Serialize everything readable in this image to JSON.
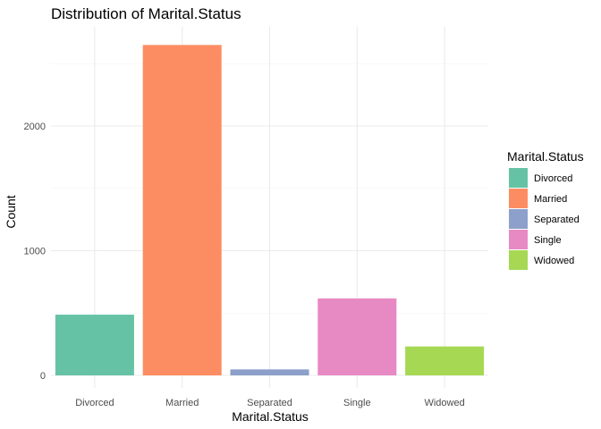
{
  "chart_data": {
    "type": "bar",
    "title": "Distribution of Marital.Status",
    "xlabel": "Marital.Status",
    "ylabel": "Count",
    "categories": [
      "Divorced",
      "Married",
      "Separated",
      "Single",
      "Widowed"
    ],
    "values": [
      487,
      2650,
      48,
      617,
      232
    ],
    "ylim": [
      0,
      2700
    ],
    "yticks": [
      0,
      1000,
      2000
    ],
    "ytick_labels": [
      "0",
      "1000",
      "2000"
    ],
    "grid": true,
    "legend": {
      "title": "Marital.Status",
      "placement": "right",
      "entries": [
        "Divorced",
        "Married",
        "Separated",
        "Single",
        "Widowed"
      ]
    },
    "colors": [
      "#66c2a5",
      "#fc8d62",
      "#8da0cb",
      "#e78ac3",
      "#a6d854"
    ]
  }
}
